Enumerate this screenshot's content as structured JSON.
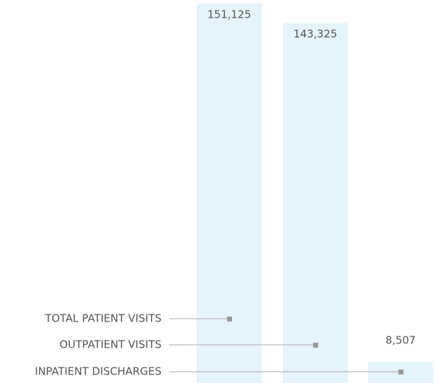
{
  "chart_data": {
    "type": "bar",
    "categories": [
      "TOTAL PATIENT VISITS",
      "OUTPATIENT VISITS",
      "INPATIENT DISCHARGES"
    ],
    "values": [
      151125,
      143325,
      8507
    ],
    "value_labels": [
      "151,125",
      "143,325",
      "8,507"
    ],
    "color": "#e5f3fb"
  }
}
